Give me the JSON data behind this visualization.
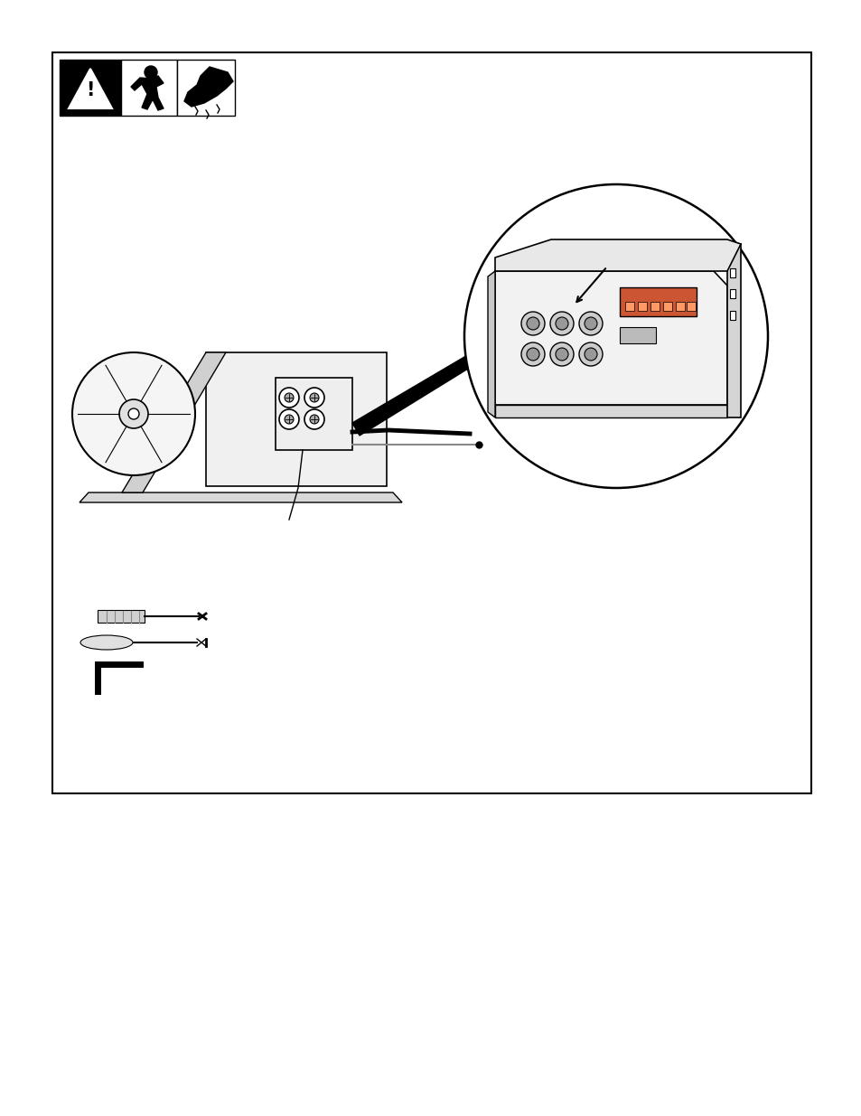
{
  "background_color": "#ffffff",
  "border_color": "#000000",
  "border_lw": 1.5,
  "page_bg": "#ffffff"
}
